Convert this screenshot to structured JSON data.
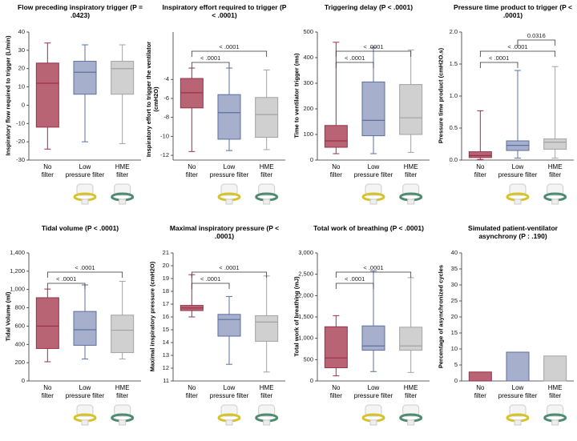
{
  "chart_data": [
    {
      "type": "box",
      "title": "Flow preceding inspiratory trigger (P = .0423)",
      "ylabel": "Inspiratory flow required to trigger (L/min)",
      "categories": [
        "No\nfilter",
        "Low\npressure filter",
        "HME\nfilter"
      ],
      "colors": [
        "#b86474",
        "#a6b0cc",
        "#d0d0d0"
      ],
      "edge_colors": [
        "#9a2f49",
        "#5d6fa0",
        "#a2a2a2"
      ],
      "boxes": [
        {
          "low": -24,
          "q1": -12,
          "median": 12,
          "q3": 23,
          "high": 34
        },
        {
          "low": -20,
          "q1": 6,
          "median": 18,
          "q3": 24,
          "high": 33
        },
        {
          "low": -21,
          "q1": 6,
          "median": 20,
          "q3": 24,
          "high": 33
        }
      ],
      "ylim": [
        -30,
        40
      ],
      "yticks": [
        -30,
        -20,
        -10,
        0,
        10,
        20,
        30,
        40
      ],
      "brackets": []
    },
    {
      "type": "box",
      "title": "Inspiratory effort required to trigger (P < .0001)",
      "ylabel": "Inspiratory effort to trigger the ventilator (cmH2O)",
      "categories": [
        "No\nfilter",
        "Low\npressure filter",
        "HME\nfilter"
      ],
      "colors": [
        "#b86474",
        "#a6b0cc",
        "#d0d0d0"
      ],
      "edge_colors": [
        "#9a2f49",
        "#5d6fa0",
        "#a2a2a2"
      ],
      "boxes": [
        {
          "low": -11.6,
          "q1": -7,
          "median": -5.4,
          "q3": -3.9,
          "high": -2.8
        },
        {
          "low": -11.5,
          "q1": -10.3,
          "median": -7.5,
          "q3": -5.6,
          "high": -2.8
        },
        {
          "low": -11.4,
          "q1": -10.1,
          "median": -7.7,
          "q3": -5.9,
          "high": -3
        }
      ],
      "ylim": [
        -12.5,
        1
      ],
      "yticks": [
        -12,
        -10,
        -8,
        -6,
        -4
      ],
      "brackets": [
        {
          "from": 0,
          "to": 1,
          "label": "< .0001"
        },
        {
          "from": 0,
          "to": 2,
          "label": "< .0001"
        }
      ]
    },
    {
      "type": "box",
      "title": "Triggering delay (P < .0001)",
      "ylabel": "Time to ventilator trigger (ms)",
      "categories": [
        "No\nfilter",
        "Low\npressure filter",
        "HME\nfilter"
      ],
      "colors": [
        "#b86474",
        "#a6b0cc",
        "#d0d0d0"
      ],
      "edge_colors": [
        "#9a2f49",
        "#5d6fa0",
        "#a2a2a2"
      ],
      "boxes": [
        {
          "low": 25,
          "q1": 50,
          "median": 75,
          "q3": 135,
          "high": 460
        },
        {
          "low": 25,
          "q1": 95,
          "median": 155,
          "q3": 305,
          "high": 440
        },
        {
          "low": 30,
          "q1": 100,
          "median": 165,
          "q3": 295,
          "high": 430
        }
      ],
      "ylim": [
        0,
        500
      ],
      "yticks": [
        0,
        100,
        200,
        300,
        400,
        500
      ],
      "brackets": [
        {
          "from": 0,
          "to": 1,
          "label": "< .0001"
        },
        {
          "from": 0,
          "to": 2,
          "label": "< .0001"
        }
      ]
    },
    {
      "type": "box",
      "title": "Pressure time product to trigger (P < .0001)",
      "ylabel": "Pressure time product (cmH2O.s)",
      "categories": [
        "No\nfilter",
        "Low\npressure filter",
        "HME\nfilter"
      ],
      "colors": [
        "#b86474",
        "#a6b0cc",
        "#d0d0d0"
      ],
      "edge_colors": [
        "#9a2f49",
        "#5d6fa0",
        "#a2a2a2"
      ],
      "boxes": [
        {
          "low": 0.01,
          "q1": 0.04,
          "median": 0.07,
          "q3": 0.13,
          "high": 0.77
        },
        {
          "low": 0.03,
          "q1": 0.15,
          "median": 0.23,
          "q3": 0.3,
          "high": 1.4
        },
        {
          "low": 0.03,
          "q1": 0.17,
          "median": 0.28,
          "q3": 0.33,
          "high": 1.46
        }
      ],
      "ylim": [
        0,
        2
      ],
      "yticks": [
        {
          "value": 0,
          "label": "0.0"
        },
        0.5,
        {
          "value": 1,
          "label": "1.0"
        },
        1.5,
        {
          "value": 2,
          "label": "2.0"
        }
      ],
      "brackets": [
        {
          "from": 0,
          "to": 1,
          "label": "< .0001"
        },
        {
          "from": 0,
          "to": 2,
          "label": "< .0001"
        },
        {
          "from": 1,
          "to": 2,
          "label": "0.0316"
        }
      ]
    },
    {
      "type": "box",
      "title": "Tidal volume (P < .0001)",
      "ylabel": "Tidal Volume (ml)",
      "categories": [
        "No\nfilter",
        "Low\npressure filter",
        "HME\nfilter"
      ],
      "colors": [
        "#b86474",
        "#a6b0cc",
        "#d0d0d0"
      ],
      "edge_colors": [
        "#9a2f49",
        "#5d6fa0",
        "#a2a2a2"
      ],
      "boxes": [
        {
          "low": 210,
          "q1": 355,
          "median": 600,
          "q3": 910,
          "high": 1005
        },
        {
          "low": 240,
          "q1": 390,
          "median": 560,
          "q3": 760,
          "high": 1050
        },
        {
          "low": 240,
          "q1": 310,
          "median": 555,
          "q3": 720,
          "high": 1090
        }
      ],
      "ylim": [
        0,
        1400
      ],
      "yticks": [
        0,
        200,
        400,
        600,
        800,
        {
          "value": 1000,
          "label": "1,000"
        },
        {
          "value": 1200,
          "label": "1,200"
        },
        {
          "value": 1400,
          "label": "1,400"
        }
      ],
      "brackets": [
        {
          "from": 0,
          "to": 1,
          "label": "< .0001"
        },
        {
          "from": 0,
          "to": 2,
          "label": "< .0001"
        }
      ]
    },
    {
      "type": "box",
      "title": "Maximal inspiratory pressure (P < .0001)",
      "ylabel": "Maximal inspiratory pressure (cmH2O)",
      "categories": [
        "No\nfilter",
        "Low\npressure filter",
        "HME\nfilter"
      ],
      "colors": [
        "#b86474",
        "#a6b0cc",
        "#d0d0d0"
      ],
      "edge_colors": [
        "#9a2f49",
        "#5d6fa0",
        "#a2a2a2"
      ],
      "boxes": [
        {
          "low": 16,
          "q1": 16.5,
          "median": 16.7,
          "q3": 16.9,
          "high": 19.3
        },
        {
          "low": 12.3,
          "q1": 14.5,
          "median": 15.8,
          "q3": 16.2,
          "high": 17.6
        },
        {
          "low": 11.7,
          "q1": 14.1,
          "median": 15.6,
          "q3": 16.1,
          "high": 19.2
        }
      ],
      "ylim": [
        11,
        21
      ],
      "yticks": [
        11,
        12,
        13,
        14,
        15,
        16,
        17,
        18,
        19,
        20,
        21
      ],
      "brackets": [
        {
          "from": 0,
          "to": 1,
          "label": "< .0001"
        },
        {
          "from": 0,
          "to": 2,
          "label": "< .0001"
        }
      ]
    },
    {
      "type": "box",
      "title": "Total work of breathing (P < .0001)",
      "ylabel": "Total work of breathing (mJ)",
      "categories": [
        "No\nfilter",
        "Low\npressure filter",
        "HME\nfilter"
      ],
      "colors": [
        "#b86474",
        "#a6b0cc",
        "#d0d0d0"
      ],
      "edge_colors": [
        "#9a2f49",
        "#5d6fa0",
        "#a2a2a2"
      ],
      "boxes": [
        {
          "low": 120,
          "q1": 310,
          "median": 540,
          "q3": 1270,
          "high": 1530
        },
        {
          "low": 220,
          "q1": 720,
          "median": 820,
          "q3": 1290,
          "high": 2580
        },
        {
          "low": 200,
          "q1": 720,
          "median": 820,
          "q3": 1260,
          "high": 2420
        }
      ],
      "ylim": [
        0,
        3000
      ],
      "yticks": [
        0,
        500,
        {
          "value": 1000,
          "label": "1,000"
        },
        {
          "value": 1500,
          "label": "1,500"
        },
        {
          "value": 2000,
          "label": "2,000"
        },
        {
          "value": 2500,
          "label": "2,500"
        },
        {
          "value": 3000,
          "label": "3,000"
        }
      ],
      "brackets": [
        {
          "from": 0,
          "to": 1,
          "label": "< .0001"
        },
        {
          "from": 0,
          "to": 2,
          "label": "< .0001"
        }
      ]
    },
    {
      "type": "bar",
      "title": "Simulated patient-ventilator asynchrony (P : .190)",
      "ylabel": "Percentage of asynchronized cycles",
      "categories": [
        "No\nfilter",
        "Low\npressure filter",
        "HME\nfilter"
      ],
      "colors": [
        "#b86474",
        "#a6b0cc",
        "#d0d0d0"
      ],
      "edge_colors": [
        "#9a2f49",
        "#5d6fa0",
        "#a2a2a2"
      ],
      "values": [
        2.8,
        9,
        7.8
      ],
      "ylim": [
        0,
        40
      ],
      "yticks": [
        0,
        5,
        10,
        15,
        20,
        25,
        30,
        35,
        40
      ],
      "brackets": []
    }
  ]
}
